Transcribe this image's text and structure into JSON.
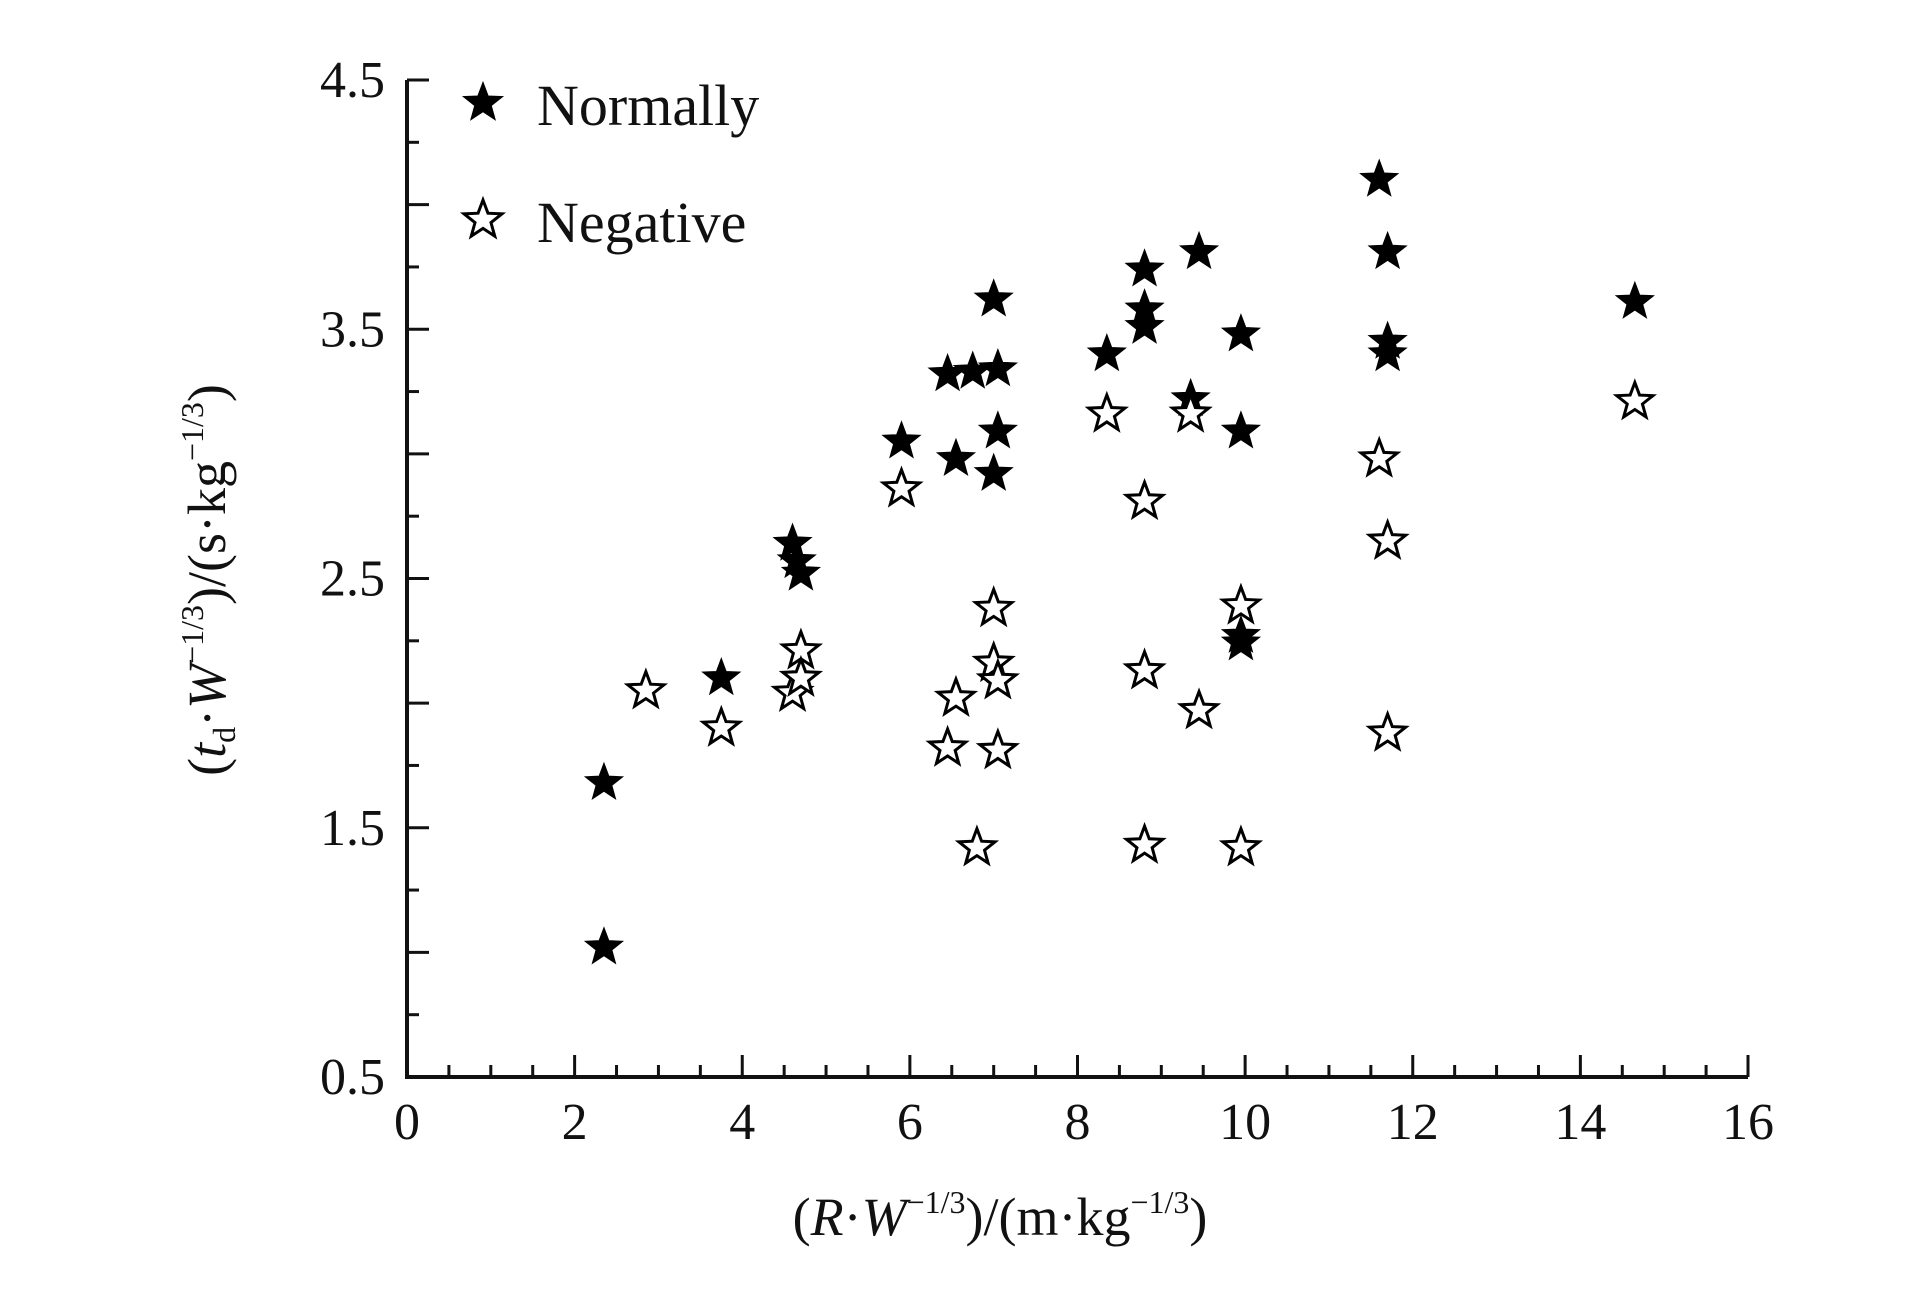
{
  "chart_data": {
    "type": "scatter",
    "title": "",
    "xlabel": {
      "open": "(",
      "var": "R",
      "dot": "·",
      "var2": "W",
      "exp": "−1/3",
      "unit": ")/(m·kg",
      "unit_exp": "−1/3",
      "close": ")"
    },
    "ylabel": {
      "open": "(",
      "var": "t",
      "sub": "d",
      "dot": "·",
      "var2": "W",
      "exp": "−1/3",
      "unit": ")/(s·kg",
      "unit_exp": "−1/3",
      "close": ")"
    },
    "xlim": [
      0,
      16
    ],
    "ylim": [
      0.5,
      4.5
    ],
    "x_ticks": [
      0,
      2,
      4,
      6,
      8,
      10,
      12,
      14,
      16
    ],
    "x_tick_labels": [
      "0",
      "2",
      "4",
      "6",
      "8",
      "10",
      "12",
      "14",
      "16"
    ],
    "y_ticks": [
      0.5,
      1.5,
      2.5,
      3.5,
      4.5
    ],
    "y_tick_labels": [
      "0.5",
      "1.5",
      "2.5",
      "3.5",
      "4.5"
    ],
    "grid": false,
    "legend_position": "top-left",
    "series": [
      {
        "name": "Normally",
        "marker": "filled-star",
        "color": "#000000",
        "points": [
          [
            2.35,
            1.68
          ],
          [
            2.35,
            1.02
          ],
          [
            3.75,
            2.1
          ],
          [
            4.6,
            2.64
          ],
          [
            4.65,
            2.57
          ],
          [
            4.7,
            2.52
          ],
          [
            5.9,
            3.05
          ],
          [
            6.45,
            3.32
          ],
          [
            6.55,
            2.98
          ],
          [
            6.75,
            3.33
          ],
          [
            7.0,
            3.62
          ],
          [
            7.05,
            3.34
          ],
          [
            7.05,
            3.09
          ],
          [
            7.0,
            2.92
          ],
          [
            8.35,
            3.4
          ],
          [
            8.8,
            3.74
          ],
          [
            8.8,
            3.58
          ],
          [
            8.8,
            3.51
          ],
          [
            9.35,
            3.22
          ],
          [
            9.45,
            3.81
          ],
          [
            9.95,
            3.48
          ],
          [
            9.95,
            3.09
          ],
          [
            9.95,
            2.27
          ],
          [
            9.95,
            2.24
          ],
          [
            11.6,
            4.1
          ],
          [
            11.7,
            3.81
          ],
          [
            11.7,
            3.45
          ],
          [
            11.7,
            3.4
          ],
          [
            14.65,
            3.61
          ]
        ]
      },
      {
        "name": "Negative",
        "marker": "hollow-star",
        "color": "#000000",
        "points": [
          [
            2.85,
            2.05
          ],
          [
            3.75,
            1.9
          ],
          [
            4.6,
            2.04
          ],
          [
            4.7,
            2.21
          ],
          [
            4.7,
            2.1
          ],
          [
            5.9,
            2.86
          ],
          [
            6.45,
            1.82
          ],
          [
            6.55,
            2.02
          ],
          [
            6.8,
            1.42
          ],
          [
            7.0,
            2.38
          ],
          [
            7.0,
            2.16
          ],
          [
            7.05,
            2.09
          ],
          [
            7.05,
            1.81
          ],
          [
            8.35,
            3.16
          ],
          [
            8.8,
            2.81
          ],
          [
            8.8,
            2.13
          ],
          [
            8.8,
            1.43
          ],
          [
            9.35,
            3.16
          ],
          [
            9.45,
            1.97
          ],
          [
            9.95,
            2.39
          ],
          [
            9.95,
            1.42
          ],
          [
            11.6,
            2.98
          ],
          [
            11.7,
            2.65
          ],
          [
            11.7,
            1.88
          ],
          [
            14.65,
            3.21
          ]
        ]
      }
    ]
  }
}
